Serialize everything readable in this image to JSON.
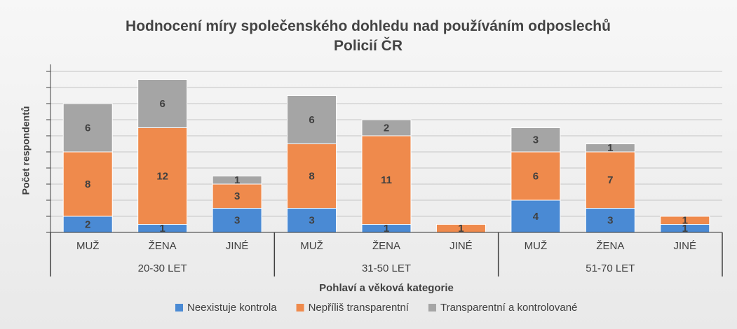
{
  "chart_data": {
    "type": "stacked_bar",
    "title": "Hodnocení míry společenského dohledu nad používáním odposlechů Policií ČR",
    "y_label": "Počet respondentů",
    "x_label": "Pohlaví a věková kategorie",
    "categories": [
      "MUŽ",
      "ŽENA",
      "JINÉ",
      "MUŽ",
      "ŽENA",
      "JINÉ",
      "MUŽ",
      "ŽENA",
      "JINÉ"
    ],
    "groups": [
      "20-30 LET",
      "31-50 LET",
      "51-70 LET"
    ],
    "series": [
      {
        "name": "Neexistuje kontrola",
        "color": "#4a8ad4",
        "values": [
          2,
          1,
          3,
          3,
          1,
          null,
          4,
          3,
          1
        ]
      },
      {
        "name": "Nepříliš transparentní",
        "color": "#ef8a4c",
        "values": [
          8,
          12,
          3,
          8,
          11,
          1,
          6,
          7,
          1
        ]
      },
      {
        "name": "Transparentní a kontrolované",
        "color": "#a5a5a5",
        "values": [
          6,
          6,
          1,
          6,
          2,
          null,
          3,
          1,
          null
        ]
      }
    ],
    "ylim": [
      0,
      20
    ],
    "yticks": [
      0,
      2,
      4,
      6,
      8,
      10,
      12,
      14,
      16,
      18,
      20
    ],
    "grid": true,
    "legend": "bottom"
  }
}
